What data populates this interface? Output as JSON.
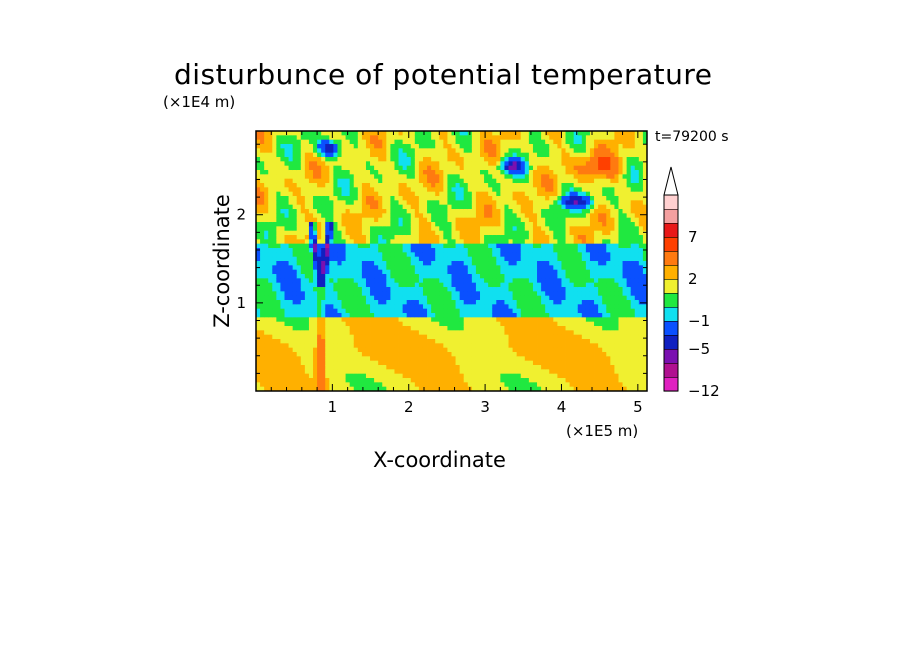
{
  "chart_data": {
    "type": "heatmap",
    "title": "disturbunce of potential temperature",
    "xlabel": "X-coordinate",
    "ylabel": "Z-coordinate",
    "x_unit": "(×1E5 m)",
    "z_unit": "(×1E4 m)",
    "time_label": "t=79200 s",
    "xlim": [
      0,
      5.12
    ],
    "ylim": [
      0,
      2.95
    ],
    "x_ticks": [
      "1",
      "2",
      "3",
      "4",
      "5"
    ],
    "x_tick_values": [
      1,
      2,
      3,
      4,
      5
    ],
    "y_ticks": [
      "1",
      "2"
    ],
    "y_tick_values": [
      1,
      2
    ],
    "colorbar": {
      "levels": [
        -12,
        -9,
        -7,
        -5,
        -3,
        -1,
        0,
        1,
        2,
        3,
        5,
        7,
        9,
        11
      ],
      "labels": [
        "-12",
        "-5",
        "-1",
        "2",
        "7"
      ],
      "label_values": [
        -12,
        -5,
        -1,
        2,
        7
      ],
      "colors": [
        "#e020c0",
        "#b01090",
        "#7a10b0",
        "#1020c0",
        "#0a50ff",
        "#10e0f0",
        "#20e840",
        "#f0f030",
        "#ffb000",
        "#ff7a10",
        "#ff4000",
        "#e81818",
        "#f4a0a0",
        "#ffd0d0"
      ],
      "extend_top": true
    },
    "description_layers": [
      {
        "z_range": [
          0,
          0.9
        ],
        "typical_value": 1.5
      },
      {
        "z_range": [
          0.9,
          1.6
        ],
        "typical_value": -0.5
      },
      {
        "z_range": [
          1.6,
          2.95
        ],
        "typical_value": 1.5
      }
    ]
  }
}
